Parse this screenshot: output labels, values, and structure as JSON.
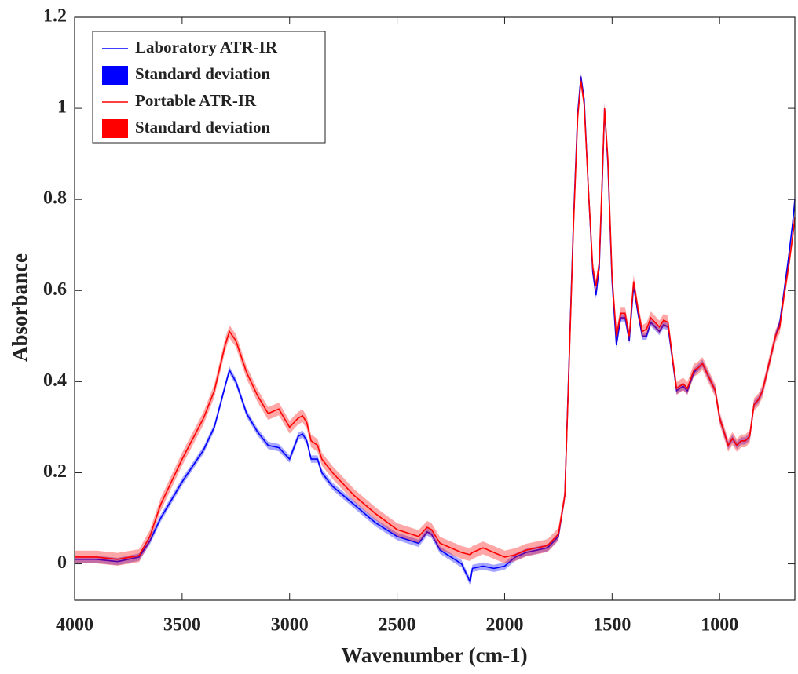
{
  "chart_data": {
    "type": "line",
    "xlabel": "Wavenumber  (cm-1)",
    "ylabel": "Absorbance",
    "xlim": [
      4000,
      650
    ],
    "ylim": [
      -0.08,
      1.2
    ],
    "xticks": [
      4000,
      3500,
      3000,
      2500,
      2000,
      1500,
      1000
    ],
    "yticks": [
      0,
      0.2,
      0.4,
      0.6,
      0.8,
      1,
      1.2
    ],
    "legend": "upper left",
    "x": [
      4000,
      3900,
      3800,
      3700,
      3650,
      3600,
      3500,
      3400,
      3350,
      3300,
      3280,
      3250,
      3200,
      3150,
      3100,
      3050,
      3000,
      2960,
      2940,
      2920,
      2900,
      2870,
      2850,
      2800,
      2700,
      2600,
      2500,
      2400,
      2360,
      2340,
      2300,
      2200,
      2160,
      2150,
      2100,
      2050,
      2000,
      1950,
      1900,
      1800,
      1750,
      1720,
      1700,
      1680,
      1660,
      1645,
      1630,
      1610,
      1590,
      1575,
      1560,
      1545,
      1535,
      1520,
      1500,
      1480,
      1460,
      1440,
      1420,
      1400,
      1380,
      1360,
      1340,
      1320,
      1300,
      1280,
      1260,
      1240,
      1220,
      1200,
      1170,
      1150,
      1120,
      1100,
      1080,
      1060,
      1040,
      1020,
      1000,
      980,
      960,
      940,
      920,
      900,
      880,
      860,
      840,
      820,
      800,
      780,
      760,
      740,
      720,
      700,
      680,
      660,
      650
    ],
    "series": [
      {
        "name": "Laboratory ATR-IR",
        "color": "#0000ff",
        "std_name": "Standard deviation",
        "std": 0.008,
        "values": [
          0.01,
          0.01,
          0.005,
          0.015,
          0.05,
          0.1,
          0.18,
          0.25,
          0.3,
          0.39,
          0.425,
          0.4,
          0.33,
          0.29,
          0.26,
          0.255,
          0.23,
          0.28,
          0.285,
          0.27,
          0.23,
          0.23,
          0.2,
          0.17,
          0.13,
          0.09,
          0.06,
          0.045,
          0.07,
          0.065,
          0.03,
          0.0,
          -0.04,
          -0.01,
          -0.005,
          -0.01,
          -0.005,
          0.015,
          0.025,
          0.035,
          0.06,
          0.15,
          0.45,
          0.75,
          0.99,
          1.07,
          1.02,
          0.82,
          0.64,
          0.59,
          0.65,
          0.85,
          1.0,
          0.88,
          0.62,
          0.48,
          0.54,
          0.54,
          0.49,
          0.61,
          0.55,
          0.5,
          0.5,
          0.53,
          0.52,
          0.51,
          0.525,
          0.52,
          0.45,
          0.38,
          0.39,
          0.38,
          0.42,
          0.43,
          0.44,
          0.42,
          0.4,
          0.38,
          0.32,
          0.29,
          0.26,
          0.275,
          0.26,
          0.27,
          0.27,
          0.28,
          0.35,
          0.36,
          0.38,
          0.42,
          0.46,
          0.5,
          0.53,
          0.6,
          0.67,
          0.75,
          0.8
        ]
      },
      {
        "name": "Portable ATR-IR",
        "color": "#ff0000",
        "std_name": "Standard deviation",
        "std": 0.014,
        "values": [
          0.015,
          0.015,
          0.01,
          0.018,
          0.06,
          0.13,
          0.23,
          0.32,
          0.38,
          0.48,
          0.51,
          0.49,
          0.42,
          0.37,
          0.33,
          0.34,
          0.3,
          0.32,
          0.325,
          0.31,
          0.27,
          0.26,
          0.23,
          0.2,
          0.15,
          0.11,
          0.075,
          0.06,
          0.08,
          0.075,
          0.045,
          0.025,
          0.02,
          0.025,
          0.035,
          0.025,
          0.015,
          0.02,
          0.03,
          0.04,
          0.065,
          0.15,
          0.44,
          0.74,
          0.98,
          1.06,
          1.01,
          0.82,
          0.65,
          0.61,
          0.66,
          0.86,
          1.0,
          0.89,
          0.63,
          0.5,
          0.55,
          0.55,
          0.5,
          0.62,
          0.56,
          0.51,
          0.515,
          0.54,
          0.53,
          0.52,
          0.535,
          0.53,
          0.455,
          0.385,
          0.395,
          0.385,
          0.425,
          0.43,
          0.44,
          0.42,
          0.4,
          0.38,
          0.32,
          0.29,
          0.26,
          0.275,
          0.26,
          0.27,
          0.27,
          0.28,
          0.35,
          0.36,
          0.38,
          0.42,
          0.46,
          0.5,
          0.52,
          0.59,
          0.65,
          0.72,
          0.76
        ]
      }
    ]
  }
}
